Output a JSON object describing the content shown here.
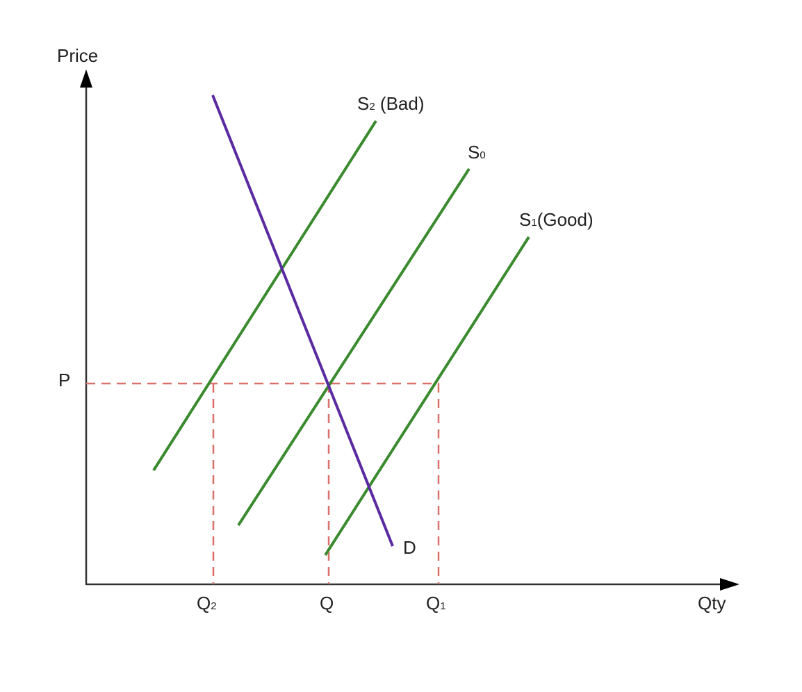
{
  "diagram": {
    "type": "supply-demand",
    "axes": {
      "y_label": "Price",
      "x_label": "Qty"
    },
    "price_label": "P",
    "quantity_labels": {
      "q2": {
        "base": "Q",
        "sub": "2"
      },
      "q": {
        "base": "Q"
      },
      "q1": {
        "base": "Q",
        "sub": "1"
      }
    },
    "curves": {
      "s2": {
        "base": "S",
        "sub": "2",
        "suffix": " (Bad)",
        "color": "#3a8a2e"
      },
      "s0": {
        "base": "S",
        "sub": "0",
        "suffix": "",
        "color": "#3a8a2e"
      },
      "s1": {
        "base": "S",
        "sub": "1",
        "suffix": "(Good)",
        "color": "#3a8a2e"
      },
      "d": {
        "label": "D",
        "color": "#5a2aa0"
      }
    },
    "colors": {
      "axis": "#333333",
      "guide": "#d9706a"
    }
  }
}
